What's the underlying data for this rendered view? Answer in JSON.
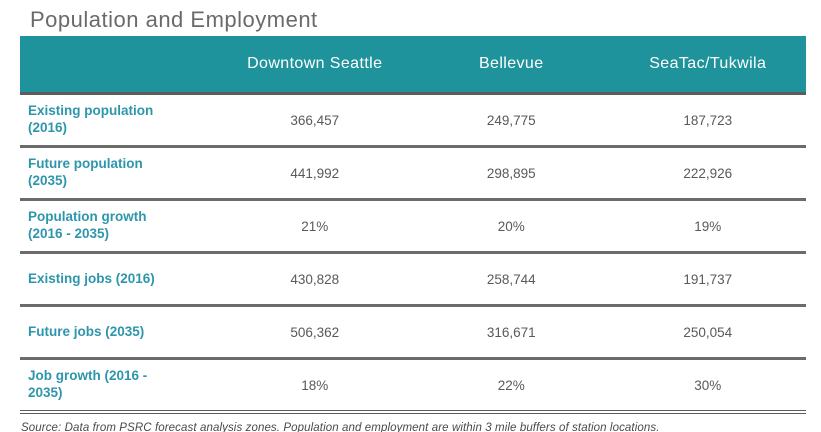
{
  "title": "Population and Employment",
  "colors": {
    "header_teal": "#1f939b",
    "label_teal": "#2e96ab",
    "value_gray": "#595959",
    "title_gray": "#6a6a6a",
    "separator_gray": "#6b6b6b"
  },
  "table": {
    "columns": [
      "Downtown Seattle",
      "Bellevue",
      "SeaTac/Tukwila"
    ],
    "rows": [
      {
        "label": "Existing population (2016)",
        "values": [
          "366,457",
          "249,775",
          "187,723"
        ]
      },
      {
        "label": "Future population (2035)",
        "values": [
          "441,992",
          "298,895",
          "222,926"
        ]
      },
      {
        "label": "Population growth (2016 - 2035)",
        "values": [
          "21%",
          "20%",
          "19%"
        ]
      },
      {
        "label": "Existing jobs (2016)",
        "values": [
          "430,828",
          "258,744",
          "191,737"
        ]
      },
      {
        "label": "Future jobs (2035)",
        "values": [
          "506,362",
          "316,671",
          "250,054"
        ]
      },
      {
        "label": "Job growth (2016 - 2035)",
        "values": [
          "18%",
          "22%",
          "30%"
        ]
      }
    ]
  },
  "source_note": "Source: Data from PSRC forecast analysis zones. Population and employment are within 3 mile buffers of station locations."
}
